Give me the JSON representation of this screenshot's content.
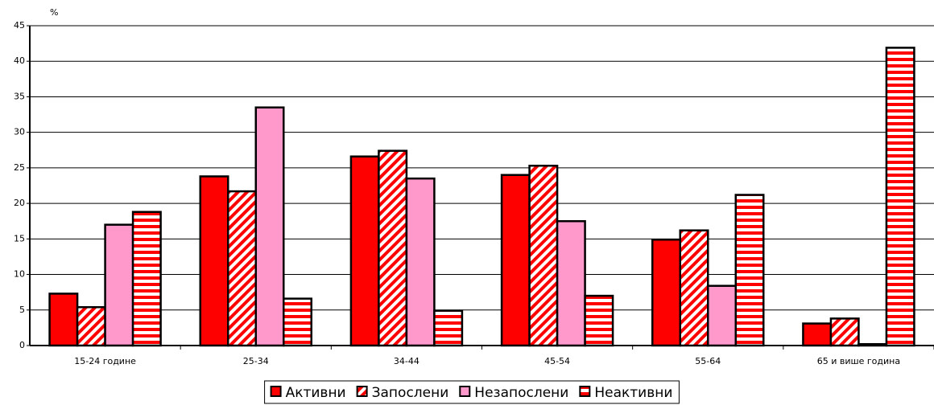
{
  "chart_data": {
    "type": "bar",
    "y_label": "%",
    "categories": [
      "15-24 године",
      "25-34",
      "34-44",
      "45-54",
      "55-64",
      "65 и више година"
    ],
    "series": [
      {
        "name": "Активни",
        "color": "#ff0000",
        "pattern": "solid",
        "values": [
          7.3,
          23.8,
          26.6,
          24.0,
          14.9,
          3.1
        ]
      },
      {
        "name": "Запослени",
        "color": "#ff0000",
        "pattern": "diagonal",
        "values": [
          5.4,
          21.7,
          27.4,
          25.3,
          16.2,
          3.8
        ]
      },
      {
        "name": "Незапослени",
        "color": "#ff99cc",
        "pattern": "solid",
        "values": [
          17.0,
          33.5,
          23.5,
          17.5,
          8.4,
          0.2
        ]
      },
      {
        "name": "Неактивни",
        "color": "#ff0000",
        "pattern": "horizontal",
        "values": [
          18.8,
          6.6,
          4.9,
          7.0,
          21.2,
          41.9
        ]
      }
    ],
    "ylim": [
      0,
      45
    ],
    "yticks": [
      0,
      5,
      10,
      15,
      20,
      25,
      30,
      35,
      40,
      45
    ],
    "grid": true,
    "legend": "bottom"
  }
}
